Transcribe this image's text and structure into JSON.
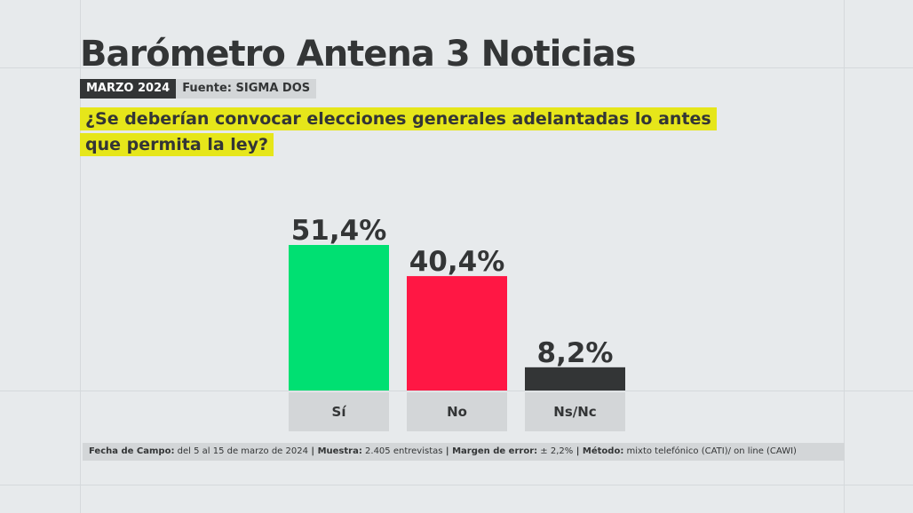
{
  "header": {
    "title": "Barómetro Antena 3 Noticias",
    "date_tag": "MARZO 2024",
    "source_tag": "Fuente: SIGMA DOS"
  },
  "question": "¿Se deberían convocar elecciones generales adelantadas lo antes que permita la ley?",
  "chart_data": {
    "type": "bar",
    "title": "¿Se deberían convocar elecciones generales adelantadas lo antes que permita la ley?",
    "categories": [
      "Sí",
      "No",
      "Ns/Nc"
    ],
    "values": [
      51.4,
      40.4,
      8.2
    ],
    "value_labels": [
      "51,4%",
      "40,4%",
      "8,2%"
    ],
    "colors": [
      "#00e072",
      "#ff1744",
      "#333536"
    ],
    "xlabel": "",
    "ylabel": "",
    "ylim": [
      0,
      100
    ]
  },
  "footer": {
    "fecha_label": "Fecha de Campo:",
    "fecha_value": " del 5 al 15 de marzo de 2024",
    "muestra_label": "Muestra:",
    "muestra_value": " 2.405 entrevistas",
    "margen_label": "Margen de error:",
    "margen_value": " ± 2,2%",
    "metodo_label": "Método:",
    "metodo_value": " mixto telefónico (CATI)/ on line (CAWI)",
    "separator": " | "
  }
}
